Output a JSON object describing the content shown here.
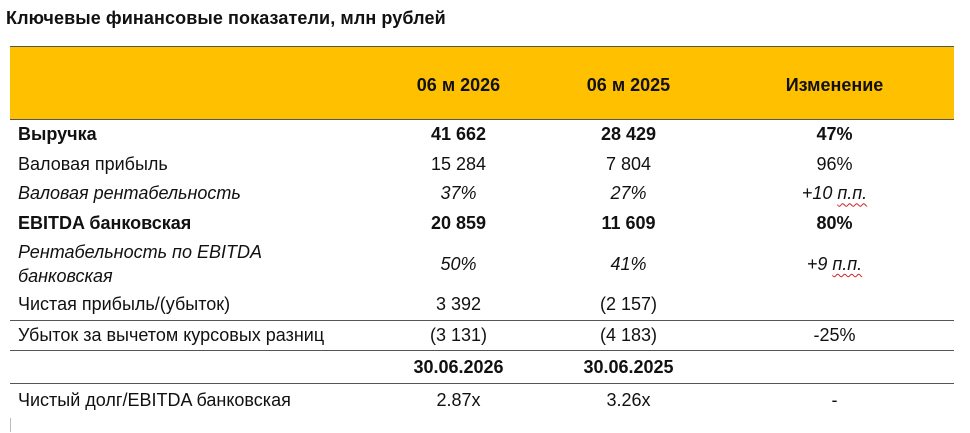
{
  "title": "Ключевые финансовые показатели, млн рублей",
  "table": {
    "header": [
      "",
      "06 м 2026",
      "06 м 2025",
      "Изменение"
    ],
    "rows": [
      {
        "label": "Выручка",
        "v1": "41 662",
        "v2": "28 429",
        "change": "47%"
      },
      {
        "label": "Валовая прибыль",
        "v1": "15 284",
        "v2": "7 804",
        "change": "96%"
      },
      {
        "label": "Валовая рентабельность",
        "v1": "37%",
        "v2": "27%",
        "change_pre": "+10 ",
        "change_mark": "п.п."
      },
      {
        "label": "EBITDA банковская",
        "v1": "20 859",
        "v2": "11 609",
        "change": "80%"
      },
      {
        "label_line1": "Рентабельность по EBITDA",
        "label_line2": "банковская",
        "v1": "50%",
        "v2": "41%",
        "change_pre": "+9 ",
        "change_mark": "п.п."
      },
      {
        "label": "Чистая прибыль/(убыток)",
        "v1": "3 392",
        "v2": "(2 157)",
        "change": ""
      },
      {
        "label": "Убыток за вычетом курсовых разниц",
        "v1": "(3 131)",
        "v2": "(4 183)",
        "change": "-25%"
      }
    ],
    "dates": {
      "d1": "30.06.2026",
      "d2": "30.06.2025"
    },
    "last": {
      "label": "Чистый долг/EBITDA банковская",
      "v1": "2.87x",
      "v2": "3.26x",
      "change": "-"
    }
  }
}
